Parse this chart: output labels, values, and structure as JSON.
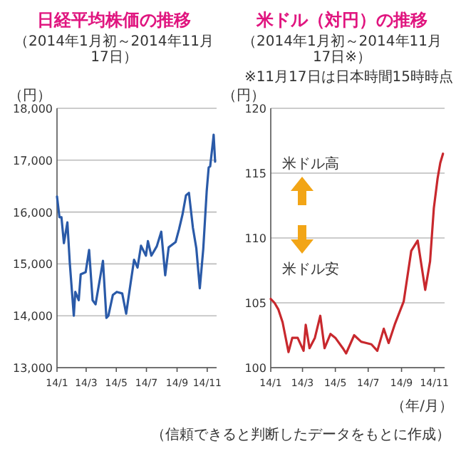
{
  "chart_data": [
    {
      "type": "line",
      "title": "日経平均株価の推移",
      "subtitle": "（2014年1月初～2014年11月17日）",
      "ylabel": "（円）",
      "xlim": [
        "2014-01-01",
        "2014-11-20"
      ],
      "ylim": [
        13000,
        18000
      ],
      "yticks": [
        {
          "value": 13000,
          "label": "13,000"
        },
        {
          "value": 14000,
          "label": "14,000"
        },
        {
          "value": 15000,
          "label": "15,000"
        },
        {
          "value": 16000,
          "label": "16,000"
        },
        {
          "value": 17000,
          "label": "17,000"
        },
        {
          "value": 18000,
          "label": "18,000"
        }
      ],
      "xticks": [
        {
          "value": "2014-01-01",
          "label": "14/1"
        },
        {
          "value": "2014-03-01",
          "label": "14/3"
        },
        {
          "value": "2014-05-01",
          "label": "14/5"
        },
        {
          "value": "2014-07-01",
          "label": "14/7"
        },
        {
          "value": "2014-09-01",
          "label": "14/9"
        },
        {
          "value": "2014-11-01",
          "label": "14/11"
        }
      ],
      "grid": "y",
      "series": [
        {
          "color": "#2a5aa8",
          "x": [
            "2014-01-01",
            "2014-01-06",
            "2014-01-10",
            "2014-01-15",
            "2014-01-22",
            "2014-01-27",
            "2014-02-04",
            "2014-02-07",
            "2014-02-14",
            "2014-02-18",
            "2014-02-28",
            "2014-03-07",
            "2014-03-14",
            "2014-03-20",
            "2014-03-31",
            "2014-04-04",
            "2014-04-11",
            "2014-04-15",
            "2014-04-24",
            "2014-05-02",
            "2014-05-13",
            "2014-05-21",
            "2014-05-30",
            "2014-06-06",
            "2014-06-13",
            "2014-06-20",
            "2014-06-30",
            "2014-07-04",
            "2014-07-11",
            "2014-07-22",
            "2014-07-31",
            "2014-08-08",
            "2014-08-15",
            "2014-08-29",
            "2014-09-05",
            "2014-09-12",
            "2014-09-19",
            "2014-09-25",
            "2014-10-03",
            "2014-10-10",
            "2014-10-17",
            "2014-10-24",
            "2014-10-31",
            "2014-11-04",
            "2014-11-07",
            "2014-11-13",
            "2014-11-14",
            "2014-11-17"
          ],
          "values": [
            16300,
            15900,
            15900,
            15400,
            15800,
            15000,
            14000,
            14460,
            14300,
            14800,
            14840,
            15270,
            14300,
            14220,
            14830,
            15060,
            13960,
            14000,
            14400,
            14460,
            14430,
            14040,
            14630,
            15080,
            14930,
            15350,
            15160,
            15440,
            15160,
            15340,
            15620,
            14780,
            15320,
            15420,
            15670,
            15950,
            16320,
            16370,
            15700,
            15300,
            14530,
            15290,
            16410,
            16860,
            16880,
            17390,
            17490,
            16970
          ]
        }
      ]
    },
    {
      "type": "line",
      "title": "米ドル（対円）の推移",
      "subtitle": "（2014年1月初～2014年11月17日※）",
      "ylabel": "（円）",
      "xlabel": "（年/月）",
      "xlim": [
        "2014-01-01",
        "2014-11-20"
      ],
      "ylim": [
        100,
        120
      ],
      "yticks": [
        100,
        105,
        110,
        115,
        120
      ],
      "xticks": [
        {
          "value": "2014-01-01",
          "label": "14/1"
        },
        {
          "value": "2014-03-01",
          "label": "14/3"
        },
        {
          "value": "2014-05-01",
          "label": "14/5"
        },
        {
          "value": "2014-07-01",
          "label": "14/7"
        },
        {
          "value": "2014-09-01",
          "label": "14/9"
        },
        {
          "value": "2014-11-01",
          "label": "14/11"
        }
      ],
      "grid": "y",
      "annotations": [
        "※11月17日は日本時間15時時点",
        "米ドル高",
        "米ドル安",
        "（信頼できると判断したデータをもとに作成）"
      ],
      "series": [
        {
          "color": "#c8282d",
          "x": [
            "2014-01-01",
            "2014-01-08",
            "2014-01-15",
            "2014-01-23",
            "2014-02-03",
            "2014-02-10",
            "2014-02-20",
            "2014-03-03",
            "2014-03-07",
            "2014-03-14",
            "2014-03-24",
            "2014-04-03",
            "2014-04-11",
            "2014-04-22",
            "2014-05-01",
            "2014-05-15",
            "2014-05-21",
            "2014-06-05",
            "2014-06-18",
            "2014-07-07",
            "2014-07-18",
            "2014-07-30",
            "2014-08-08",
            "2014-08-20",
            "2014-09-05",
            "2014-09-19",
            "2014-10-01",
            "2014-10-15",
            "2014-10-24",
            "2014-10-31",
            "2014-11-07",
            "2014-11-12",
            "2014-11-17"
          ],
          "values": [
            105.3,
            105,
            104.5,
            103.5,
            101.2,
            102.3,
            102.3,
            101.3,
            103.3,
            101.5,
            102.3,
            104,
            101.5,
            102.6,
            102.3,
            101.5,
            101.1,
            102.5,
            102,
            101.8,
            101.3,
            103,
            101.9,
            103.4,
            105.1,
            109,
            109.8,
            106,
            108.2,
            112.3,
            114.6,
            115.8,
            116.5
          ]
        }
      ]
    }
  ]
}
